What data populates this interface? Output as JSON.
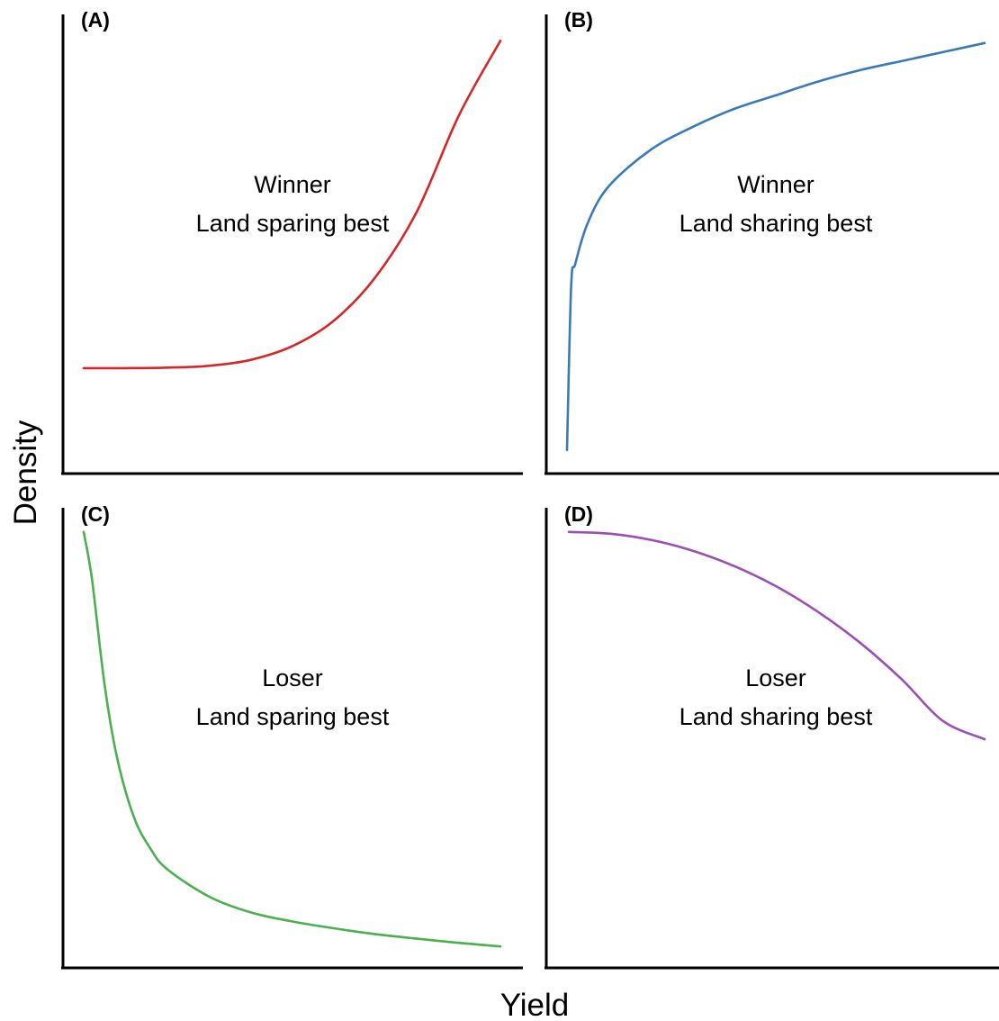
{
  "xlabel": "Yield",
  "ylabel": "Density",
  "chart_data": [
    {
      "type": "line",
      "panel_label": "(A)",
      "line1": "Winner",
      "line2": "Land sparing best",
      "color": "#d62728",
      "xlim": [
        0,
        1
      ],
      "ylim": [
        0,
        1
      ],
      "x": [
        0.0,
        0.1,
        0.2,
        0.3,
        0.4,
        0.5,
        0.6,
        0.7,
        0.8,
        0.9,
        1.0
      ],
      "y": [
        0.23,
        0.23,
        0.231,
        0.235,
        0.248,
        0.278,
        0.334,
        0.43,
        0.575,
        0.785,
        0.95
      ]
    },
    {
      "type": "line",
      "panel_label": "(B)",
      "line1": "Winner",
      "line2": "Land sharing best",
      "color": "#3a7bb5",
      "xlim": [
        0,
        1
      ],
      "ylim": [
        0,
        1
      ],
      "x": [
        0.0,
        0.01,
        0.02,
        0.05,
        0.1,
        0.2,
        0.3,
        0.4,
        0.5,
        0.6,
        0.7,
        0.8,
        0.9,
        1.0
      ],
      "y": [
        0.05,
        0.41,
        0.46,
        0.55,
        0.63,
        0.71,
        0.76,
        0.8,
        0.83,
        0.86,
        0.885,
        0.905,
        0.925,
        0.945
      ]
    },
    {
      "type": "line",
      "panel_label": "(C)",
      "line1": "Loser",
      "line2": "Land sparing best",
      "color": "#4caf50",
      "xlim": [
        0,
        1
      ],
      "ylim": [
        0,
        1
      ],
      "x": [
        0.0,
        0.02,
        0.05,
        0.08,
        0.12,
        0.16,
        0.2,
        0.3,
        0.4,
        0.5,
        0.6,
        0.7,
        0.8,
        0.9,
        1.0
      ],
      "y": [
        0.955,
        0.85,
        0.62,
        0.46,
        0.33,
        0.26,
        0.215,
        0.155,
        0.12,
        0.1,
        0.085,
        0.072,
        0.062,
        0.053,
        0.045
      ]
    },
    {
      "type": "line",
      "panel_label": "(D)",
      "line1": "Loser",
      "line2": "Land sharing best",
      "color": "#9b4fb0",
      "xlim": [
        0,
        1
      ],
      "ylim": [
        0,
        1
      ],
      "x": [
        0.0,
        0.1,
        0.2,
        0.3,
        0.4,
        0.5,
        0.6,
        0.7,
        0.8,
        0.9,
        1.0
      ],
      "y": [
        0.955,
        0.951,
        0.937,
        0.913,
        0.879,
        0.835,
        0.779,
        0.712,
        0.632,
        0.54,
        0.5
      ]
    }
  ]
}
